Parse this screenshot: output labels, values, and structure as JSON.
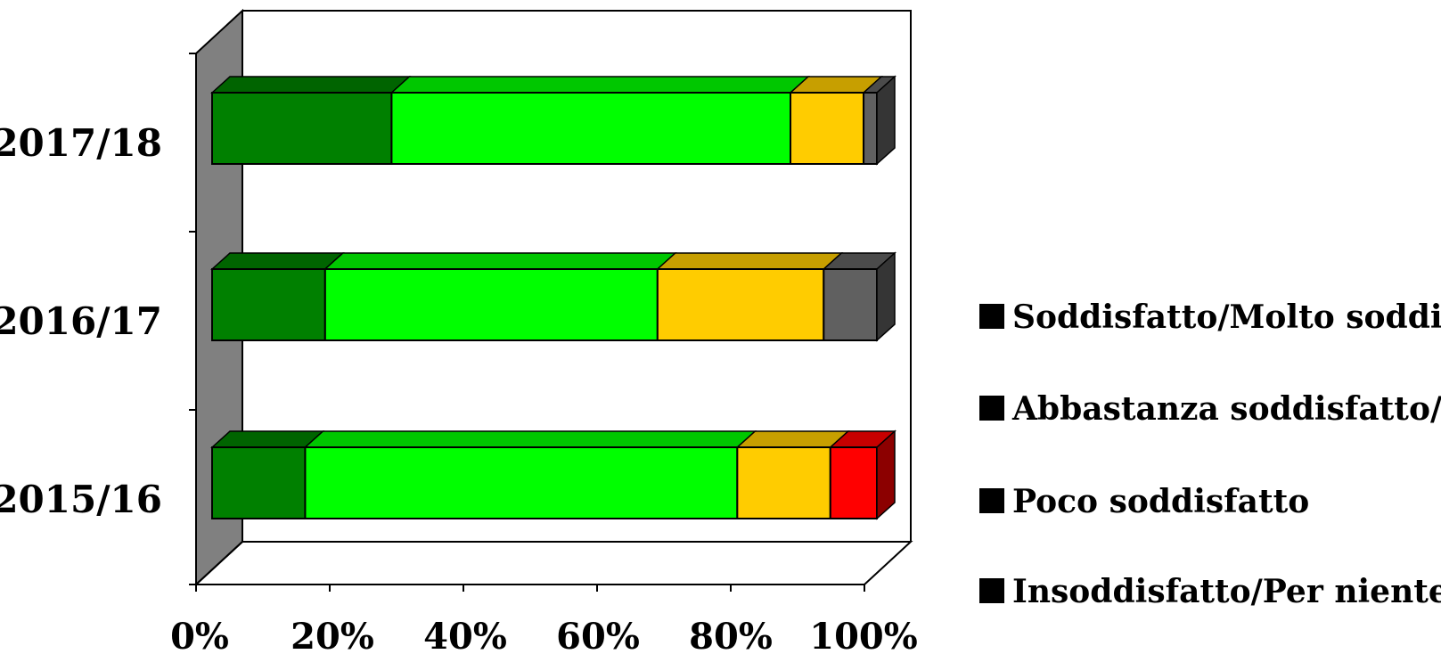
{
  "chart_data": {
    "type": "bar",
    "orientation": "horizontal",
    "stacked": "percent",
    "three_d": true,
    "categories": [
      "2015/16",
      "2016/17",
      "2017/18"
    ],
    "series": [
      {
        "name": "Soddisfatto/Molto soddisfatto",
        "color": "#008000",
        "values": [
          14,
          17,
          27
        ]
      },
      {
        "name": "Abbastanza soddisfatto/Soddisfatto",
        "color": "#00ff00",
        "values": [
          65,
          50,
          60
        ]
      },
      {
        "name": "Poco soddisfatto",
        "color": "#ffcc00",
        "values": [
          14,
          25,
          11
        ]
      },
      {
        "name": "Insoddisfatto/Per niente soddisfatto",
        "color": "#ff0000",
        "values": [
          7,
          0,
          0
        ]
      },
      {
        "color": "#606060",
        "values": [
          0,
          8,
          2
        ]
      }
    ],
    "x_ticks": [
      "0%",
      "20%",
      "40%",
      "60%",
      "80%",
      "100%"
    ],
    "xlim": [
      0,
      100
    ],
    "xlabel": "",
    "ylabel": "",
    "title": "",
    "grid": false,
    "legend_position": "right"
  }
}
